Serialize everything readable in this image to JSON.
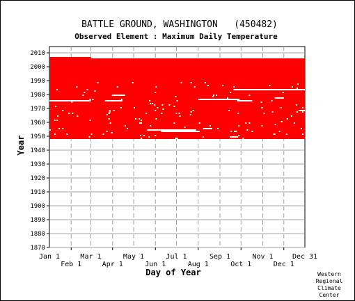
{
  "chart_data": {
    "type": "heatmap",
    "title": "BATTLE GROUND, WASHINGTON   (450482)",
    "subtitle": "Observed Element : Maximum Daily Temperature",
    "xlabel": "Day of Year",
    "ylabel": "Year",
    "x_ticks_upper": [
      "Jan 1",
      "Mar 1",
      "May 1",
      "Jul 1",
      "Sep 1",
      "Nov 1",
      "Dec 31"
    ],
    "x_ticks_lower": [
      "Feb 1",
      "Apr 1",
      "Jun 1",
      "Aug 1",
      "Oct 1",
      "Dec 1"
    ],
    "y_ticks": [
      1870,
      1880,
      1890,
      1900,
      1910,
      1920,
      1930,
      1940,
      1950,
      1960,
      1970,
      1980,
      1990,
      2000,
      2010
    ],
    "ylim": [
      1870,
      2010
    ],
    "xlim": [
      1,
      365
    ],
    "grid": true,
    "color": "#ff0000",
    "data_start_year": 1948,
    "data_end_year": 2005,
    "partial_year_2006_end_day": 60,
    "missing_periods": [
      {
        "year": 1975,
        "start_day": 1,
        "end_day": 60
      },
      {
        "year": 1975,
        "start_day": 80,
        "end_day": 105
      },
      {
        "year": 1979,
        "start_day": 90,
        "end_day": 109
      },
      {
        "year": 1975,
        "start_day": 268,
        "end_day": 290
      },
      {
        "year": 1976,
        "start_day": 213,
        "end_day": 272
      },
      {
        "year": 1977,
        "start_day": 322,
        "end_day": 335
      },
      {
        "year": 1983,
        "start_day": 263,
        "end_day": 365
      },
      {
        "year": 1968,
        "start_day": 356,
        "end_day": 365
      },
      {
        "year": 1954,
        "start_day": 140,
        "end_day": 210
      },
      {
        "year": 1953,
        "start_day": 160,
        "end_day": 215
      },
      {
        "year": 1955,
        "start_day": 220,
        "end_day": 233
      },
      {
        "year": 1948,
        "start_day": 180,
        "end_day": 184
      },
      {
        "year": 1949,
        "start_day": 258,
        "end_day": 270
      }
    ],
    "credit": [
      "Western",
      "Regional",
      "Climate",
      "Center"
    ]
  }
}
